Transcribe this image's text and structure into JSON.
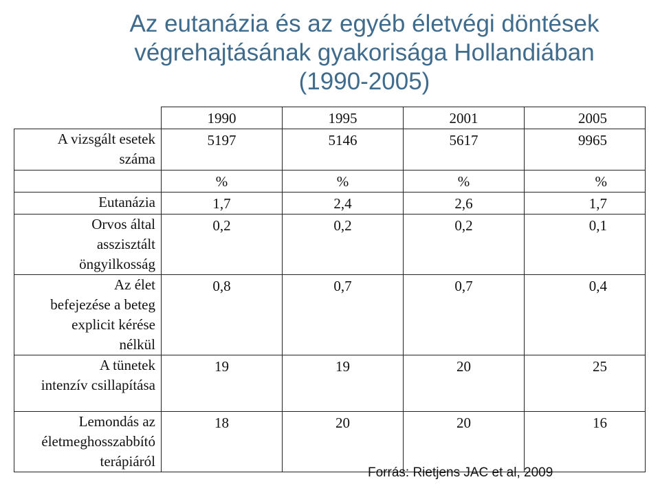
{
  "title": {
    "line1": "Az eutanázia és az egyéb életvégi döntések",
    "line2": "végrehajtásának gyakorisága Hollandiában",
    "line3": "(1990-2005)"
  },
  "table": {
    "years": [
      "1990",
      "1995",
      "2001",
      "2005"
    ],
    "rows": [
      {
        "label": [
          "A vizsgált esetek",
          "száma"
        ],
        "values": [
          "5197",
          "5146",
          "5617",
          "9965"
        ]
      },
      {
        "label": [],
        "values": [
          "%",
          "%",
          "%",
          "%"
        ]
      },
      {
        "label": [
          "Eutanázia"
        ],
        "values": [
          "1,7",
          "2,4",
          "2,6",
          "1,7"
        ]
      },
      {
        "label": [
          "Orvos által",
          "asszisztált",
          "öngyilkosság"
        ],
        "values": [
          "0,2",
          "0,2",
          "0,2",
          "0,1"
        ]
      },
      {
        "label": [
          "Az élet",
          "befejezése a beteg",
          "explicit kérése",
          "nélkül"
        ],
        "values": [
          "0,8",
          "0,7",
          "0,7",
          "0,4"
        ]
      },
      {
        "label": [
          "A tünetek",
          "intenzív csillapítása",
          ""
        ],
        "values": [
          "19",
          "19",
          "20",
          "25"
        ]
      },
      {
        "label": [
          "Lemondás az",
          "életmeghosszabbító",
          "terápiáról"
        ],
        "values": [
          "18",
          "20",
          "20",
          "16"
        ]
      }
    ]
  },
  "source": "Forrás: Rietjens JAC et al, 2009"
}
